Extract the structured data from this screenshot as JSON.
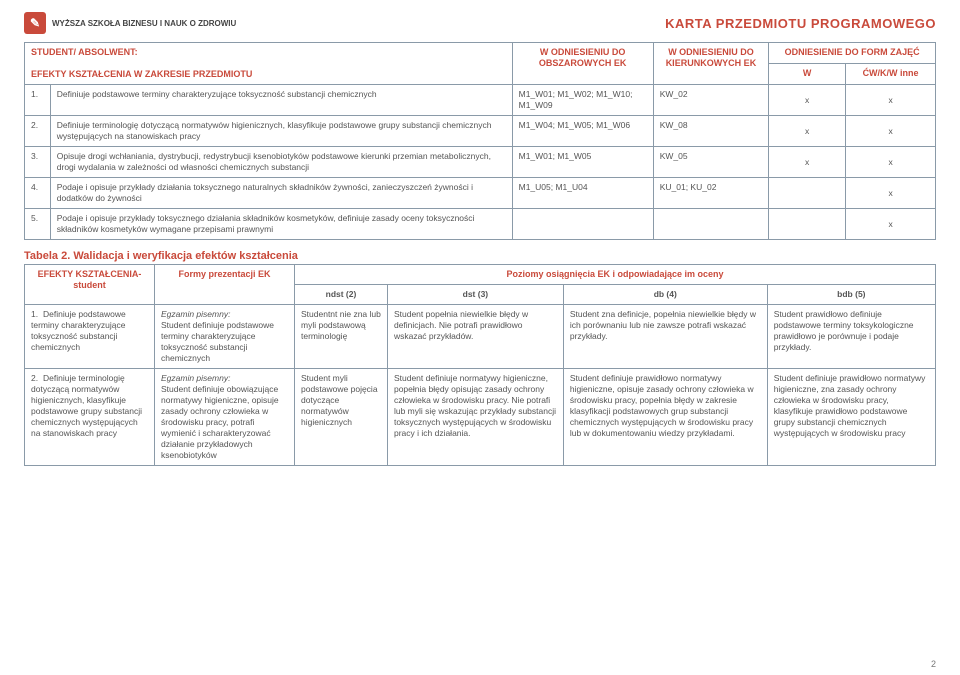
{
  "header": {
    "logo_text": "WYŻSZA SZKOŁA\nBiznesu i Nauk o Zdrowiu",
    "page_title": "KARTA PRZEDMIOTU PROGRAMOWEGO",
    "page_number": "2"
  },
  "table1": {
    "col_headers": {
      "c1": "STUDENT/ ABSOLWENT:",
      "c2": "EFEKTY KSZTAŁCENIA W ZAKRESIE PRZEDMIOTU",
      "c3": "W ODNIESIENIU DO OBSZAROWYCH EK",
      "c4": "W ODNIESIENIU DO KIERUNKOWYCH EK",
      "c5": "ODNIESIENIE DO FORM ZAJĘĆ",
      "c5a": "W",
      "c5b": "ĆW/K/W inne"
    },
    "rows": [
      {
        "num": "1.",
        "text": "Definiuje podstawowe terminy charakteryzujące toksyczność substancji chemicznych",
        "col3": "M1_W01; M1_W02; M1_W10; M1_W09",
        "col4": "KW_02",
        "w": "x",
        "cw": "x"
      },
      {
        "num": "2.",
        "text": "Definiuje terminologię dotyczącą normatywów higienicznych, klasyfikuje podstawowe grupy substancji chemicznych występujących na stanowiskach pracy",
        "col3": "M1_W04; M1_W05; M1_W06",
        "col4": "KW_08",
        "w": "x",
        "cw": "x"
      },
      {
        "num": "3.",
        "text": "Opisuje drogi wchłaniania, dystrybucji, redystrybucji ksenobiotyków podstawowe kierunki przemian metabolicznych, drogi wydalania w zależności od własności chemicznych substancji",
        "col3": "M1_W01; M1_W05",
        "col4": "KW_05",
        "w": "x",
        "cw": "x"
      },
      {
        "num": "4.",
        "text": "Podaje i opisuje przykłady działania toksycznego naturalnych składników żywności, zanieczyszczeń żywności i dodatków do żywności",
        "col3": "M1_U05; M1_U04",
        "col4": "KU_01; KU_02",
        "w": "",
        "cw": "x"
      },
      {
        "num": "5.",
        "text": "Podaje i opisuje przykłady toksycznego działania składników kosmetyków, definiuje zasady oceny toksyczności składników kosmetyków wymagane przepisami prawnymi",
        "col3": "",
        "col4": "",
        "w": "",
        "cw": "x"
      }
    ]
  },
  "table2": {
    "title": "Tabela 2. Walidacja i weryfikacja efektów kształcenia",
    "headers": {
      "c1": "EFEKTY KSZTAŁCENIA- student",
      "c2": "Formy prezentacji EK",
      "c3": "Poziomy osiągnięcia EK i odpowiadające im oceny",
      "g1": "ndst (2)",
      "g2": "dst (3)",
      "g3": "db (4)",
      "g4": "bdb (5)"
    },
    "rows": [
      {
        "num": "1.",
        "c1": "Definiuje podstawowe terminy charakteryzujące toksyczność substancji chemicznych",
        "c2_title": "Egzamin pisemny:",
        "c2": "Student definiuje podstawowe terminy charakteryzujące toksyczność substancji chemicznych",
        "g1": "Studentnt nie zna lub myli podstawową terminologię",
        "g2": "Student popełnia niewielkie błędy w definicjach. Nie potrafi prawidłowo wskazać przykładów.",
        "g3": "Student zna definicje, popełnia niewielkie błędy w ich porównaniu lub nie zawsze potrafi wskazać przykłady.",
        "g4": "Student prawidłowo definiuje podstawowe terminy toksykologiczne prawidłowo je porównuje i podaje przykłady."
      },
      {
        "num": "2.",
        "c1": "Definiuje terminologię dotyczącą normatywów higienicznych, klasyfikuje podstawowe grupy substancji chemicznych występujących na stanowiskach pracy",
        "c2_title": "Egzamin pisemny:",
        "c2": "Student definiuje obowiązujące normatywy higieniczne, opisuje zasady ochrony człowieka w środowisku pracy, potrafi wymienić i scharakteryzować działanie przykładowych ksenobiotyków",
        "g1": "Student myli podstawowe pojęcia dotyczące normatywów higienicznych",
        "g2": "Student definiuje normatywy higieniczne, popełnia błędy opisując zasady ochrony człowieka w środowisku pracy. Nie potrafi lub myli się wskazując przykłady substancji toksycznych występujących w środowisku pracy i ich działania.",
        "g3": "Student definiuje prawidłowo normatywy higieniczne, opisuje zasady ochrony człowieka w środowisku pracy, popełnia błędy w zakresie klasyfikacji podstawowych grup substancji chemicznych występujących w środowisku pracy lub w dokumentowaniu wiedzy przykładami.",
        "g4": "Student definiuje prawidłowo normatywy higieniczne, zna zasady ochrony człowieka w środowisku pracy, klasyfikuje prawidłowo podstawowe grupy substancji chemicznych występujących w środowisku pracy"
      }
    ]
  },
  "colors": {
    "accent": "#c94a3b",
    "border": "#8a9aa8",
    "text": "#555555",
    "bg": "#ffffff"
  }
}
